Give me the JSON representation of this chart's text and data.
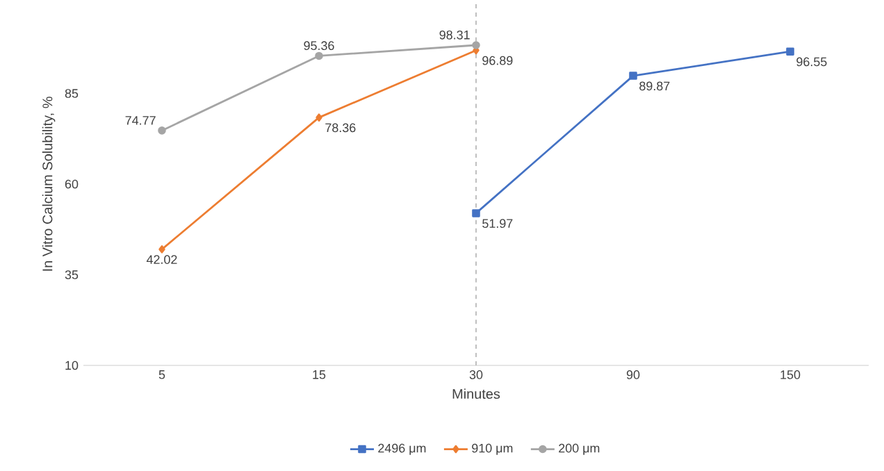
{
  "chart_data": {
    "type": "line",
    "xlabel": "Minutes",
    "ylabel": "In Vitro Calcium Solubility, %",
    "categories": [
      "5",
      "15",
      "30",
      "90",
      "150"
    ],
    "series": [
      {
        "name": "2496 μm",
        "color": "#4472c4",
        "marker": "square",
        "values": [
          null,
          null,
          51.97,
          89.87,
          96.55
        ]
      },
      {
        "name": "910 μm",
        "color": "#ed7d31",
        "marker": "diamond",
        "values": [
          42.02,
          78.36,
          96.89,
          null,
          null
        ]
      },
      {
        "name": "200 μm",
        "color": "#a5a5a5",
        "marker": "circle",
        "values": [
          74.77,
          95.36,
          98.31,
          null,
          null
        ]
      }
    ],
    "ylim": [
      10,
      110
    ],
    "yticks": [
      10,
      35,
      60,
      85
    ],
    "ref_lines": [
      {
        "axis": "x",
        "value": "30",
        "color": "#bfbfbf",
        "line_style": "dashed"
      }
    ],
    "data_labels": true,
    "grid": false,
    "legend": "bottom",
    "line_style": "solid"
  }
}
